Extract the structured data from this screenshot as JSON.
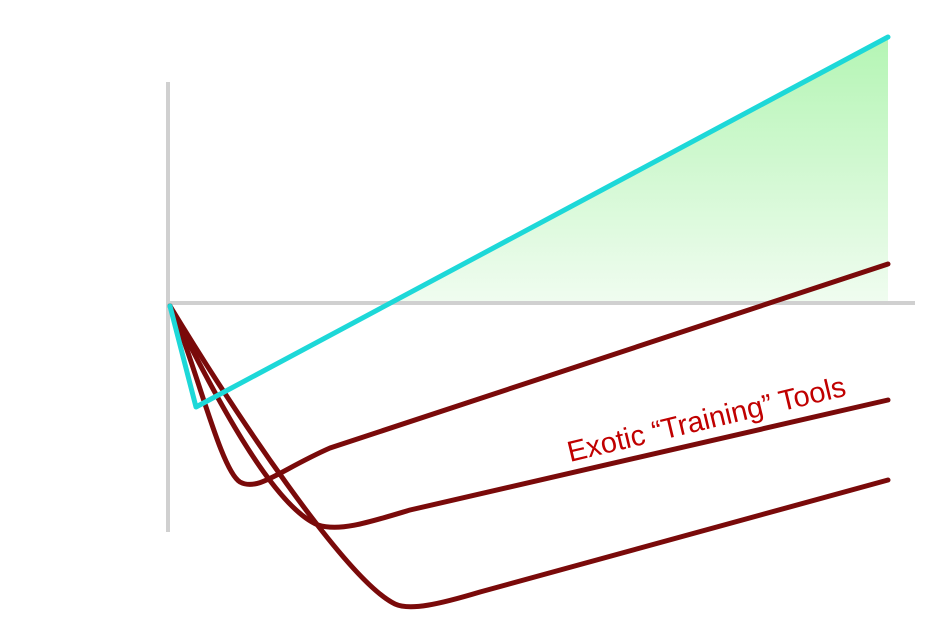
{
  "annotation": {
    "text": "Exotic “Training” Tools"
  },
  "colors": {
    "axis": "#d0d0d0",
    "ideal_line": "#1dd8d8",
    "curves": "#7a0a0a",
    "annotation": "#c00000",
    "shaded_area_top": "#b4f5b4",
    "shaded_area_bottom": "#f0fcf0"
  }
}
